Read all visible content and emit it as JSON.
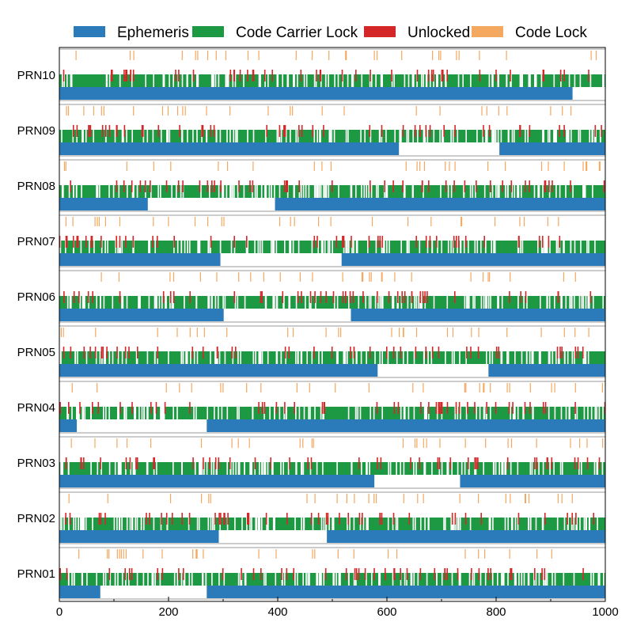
{
  "chart_data": {
    "type": "bar",
    "title": "",
    "xlabel": "",
    "ylabel": "",
    "xlim": [
      0,
      1000
    ],
    "xticks": [
      0,
      200,
      400,
      600,
      800,
      1000
    ],
    "grid": false,
    "legend_position": "top",
    "legend": [
      {
        "name": "Ephemeris",
        "color": "#2b7bba"
      },
      {
        "name": "Code Carrier Lock",
        "color": "#1e9943"
      },
      {
        "name": "Unlocked",
        "color": "#d62728"
      },
      {
        "name": "Code Lock",
        "color": "#f5a85f"
      }
    ],
    "satellites": [
      {
        "name": "PRN10",
        "ephemeris_intervals": [
          [
            0,
            940
          ]
        ]
      },
      {
        "name": "PRN09",
        "ephemeris_intervals": [
          [
            0,
            622
          ],
          [
            806,
            1000
          ]
        ]
      },
      {
        "name": "PRN08",
        "ephemeris_intervals": [
          [
            0,
            162
          ],
          [
            395,
            1000
          ]
        ]
      },
      {
        "name": "PRN07",
        "ephemeris_intervals": [
          [
            0,
            295
          ],
          [
            517,
            1000
          ]
        ]
      },
      {
        "name": "PRN06",
        "ephemeris_intervals": [
          [
            0,
            301
          ],
          [
            534,
            1000
          ]
        ]
      },
      {
        "name": "PRN05",
        "ephemeris_intervals": [
          [
            0,
            583
          ],
          [
            786,
            1000
          ]
        ]
      },
      {
        "name": "PRN04",
        "ephemeris_intervals": [
          [
            0,
            32
          ],
          [
            270,
            1000
          ]
        ]
      },
      {
        "name": "PRN03",
        "ephemeris_intervals": [
          [
            0,
            577
          ],
          [
            734,
            1000
          ]
        ]
      },
      {
        "name": "PRN02",
        "ephemeris_intervals": [
          [
            0,
            292
          ],
          [
            490,
            1000
          ]
        ]
      },
      {
        "name": "PRN01",
        "ephemeris_intervals": [
          [
            0,
            75
          ],
          [
            270,
            1000
          ]
        ]
      }
    ],
    "carrier_lock_interval": [
      0,
      1000
    ]
  }
}
